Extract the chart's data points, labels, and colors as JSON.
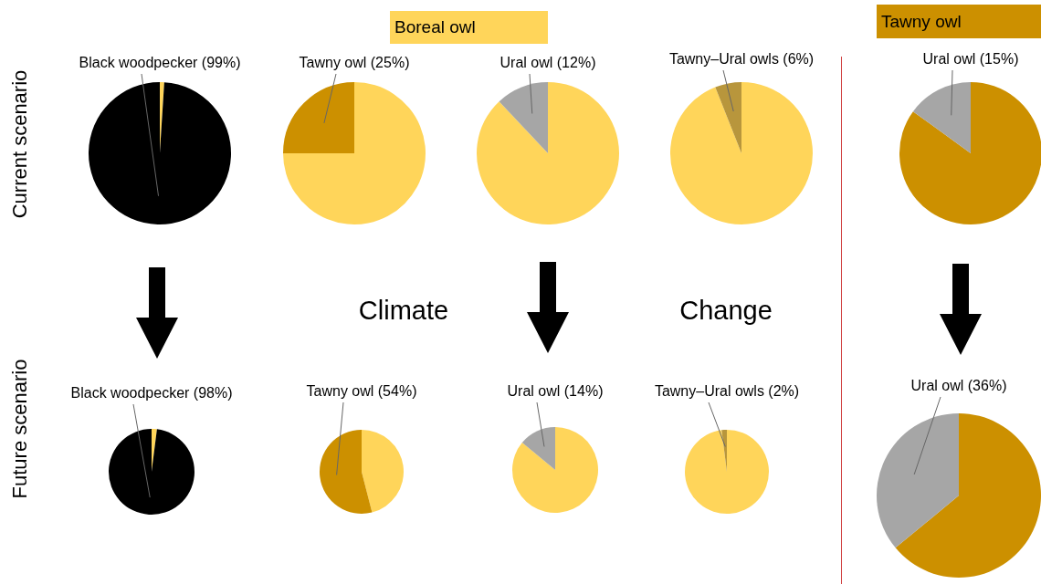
{
  "chart_data": [
    {
      "type": "pie",
      "categories": [
        null,
        "Black woodpecker (99%)"
      ],
      "values": [
        1,
        99
      ],
      "colors": [
        "#ffd55a",
        "#000000"
      ]
    },
    {
      "type": "pie",
      "categories": [
        null,
        "Tawny owl (25%)"
      ],
      "values": [
        75,
        25
      ],
      "colors": [
        "#ffd55a",
        "#cc9000"
      ]
    },
    {
      "type": "pie",
      "categories": [
        null,
        "Ural owl (12%)"
      ],
      "values": [
        88,
        12
      ],
      "colors": [
        "#ffd55a",
        "#a6a6a6"
      ]
    },
    {
      "type": "pie",
      "categories": [
        null,
        "Tawny–Ural owls (6%)"
      ],
      "values": [
        94,
        6
      ],
      "colors": [
        "#ffd55a",
        "#b8963c"
      ]
    },
    {
      "type": "pie",
      "categories": [
        null,
        "Ural owl (15%)"
      ],
      "values": [
        85,
        15
      ],
      "colors": [
        "#cc9000",
        "#a6a6a6"
      ]
    },
    {
      "type": "pie",
      "categories": [
        null,
        "Black woodpecker (98%)"
      ],
      "values": [
        2,
        98
      ],
      "colors": [
        "#ffd55a",
        "#000000"
      ]
    },
    {
      "type": "pie",
      "categories": [
        null,
        "Tawny owl (54%)"
      ],
      "values": [
        46,
        54
      ],
      "colors": [
        "#ffd55a",
        "#cc9000"
      ]
    },
    {
      "type": "pie",
      "categories": [
        null,
        "Ural owl (14%)"
      ],
      "values": [
        86,
        14
      ],
      "colors": [
        "#ffd55a",
        "#a6a6a6"
      ]
    },
    {
      "type": "pie",
      "categories": [
        null,
        "Tawny–Ural owls (2%)"
      ],
      "values": [
        98,
        2
      ],
      "colors": [
        "#ffd55a",
        "#b8963c"
      ]
    },
    {
      "type": "pie",
      "categories": [
        null,
        "Ural owl (36%)"
      ],
      "values": [
        64,
        36
      ],
      "colors": [
        "#cc9000",
        "#a6a6a6"
      ]
    },
    {
      "type": "other",
      "annotations": [
        "Boreal owl",
        "Tawny owl",
        "Current scenario",
        "Future scenario",
        "Climate",
        "Change"
      ]
    }
  ]
}
